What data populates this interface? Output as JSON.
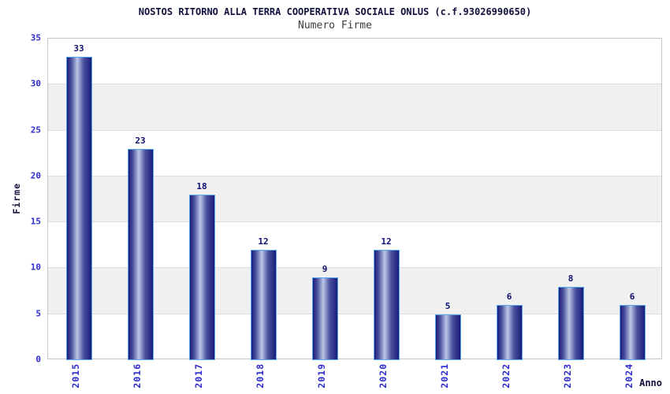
{
  "chart_data": {
    "type": "bar",
    "title": "NOSTOS RITORNO ALLA TERRA COOPERATIVA SOCIALE ONLUS (c.f.93026990650)",
    "subtitle": "Numero Firme",
    "xlabel": "Anno",
    "ylabel": "Firme",
    "categories": [
      "2015",
      "2016",
      "2017",
      "2018",
      "2019",
      "2020",
      "2021",
      "2022",
      "2023",
      "2024"
    ],
    "values": [
      33,
      23,
      18,
      12,
      9,
      12,
      5,
      6,
      8,
      6
    ],
    "ylim": [
      0,
      35
    ],
    "yticks": [
      0,
      5,
      10,
      15,
      20,
      25,
      30,
      35
    ],
    "grid": true,
    "band_ranges": [
      [
        5,
        10
      ],
      [
        15,
        20
      ],
      [
        25,
        30
      ]
    ],
    "legend_position": "none"
  },
  "colors": {
    "background": "#ffffff",
    "title_text": "#10103c",
    "subtitle_text": "#3c3c3c",
    "axis_tick_text": "#2b2bd0",
    "value_label_text": "#0d0d70",
    "axis_title_text": "#10103c",
    "bar_border": "#58a8f0",
    "bar_dark": "#1b1b78",
    "bar_mid": "#4a52a0",
    "bar_light": "#bdc5e6",
    "band_fill": "#f0f0f0",
    "gridline": "#dcdcdc",
    "plot_border": "#c6c6c6"
  }
}
